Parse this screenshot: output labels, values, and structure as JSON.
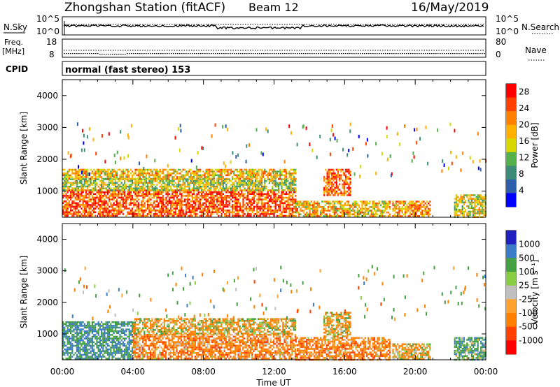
{
  "header": {
    "station": "Zhongshan Station (fitACF)",
    "beam": "Beam 12",
    "date": "16/May/2019"
  },
  "nsky_panel": {
    "left_label": "N.Sky",
    "right_label": "N.Search",
    "left_ticks": [
      "10^5",
      "10^0"
    ],
    "right_ticks": [
      "10^5",
      "10^0"
    ]
  },
  "freq_panel": {
    "left_label_line1": "Freq.",
    "left_label_line2": "[MHz]",
    "right_label": "Nave",
    "left_ticks": [
      "18",
      "8"
    ],
    "right_ticks": [
      "80",
      "0"
    ]
  },
  "cpid": {
    "label": "CPID",
    "value": "normal (fast stereo) 153"
  },
  "colors": {
    "power_scale": [
      "#0000ff",
      "#2e5fa8",
      "#3c8c78",
      "#54b04a",
      "#d8d800",
      "#ffb000",
      "#ff8000",
      "#ff4000",
      "#ff0000"
    ],
    "velocity_scale": [
      "#ff0000",
      "#ff4000",
      "#ff8000",
      "#ffa030",
      "#c0c0c0",
      "#88cc44",
      "#44a040",
      "#3c7cc8",
      "#2020c0"
    ]
  },
  "chart_data": [
    {
      "type": "heatmap",
      "title": "",
      "xlabel": "",
      "ylabel": "Slant Range [km]",
      "xlim": [
        0,
        24
      ],
      "ylim": [
        180,
        4500
      ],
      "x_tick_labels": [
        "00:00",
        "04:00",
        "08:00",
        "12:00",
        "16:00",
        "20:00",
        "00:00"
      ],
      "y_tick_labels": [
        "1000",
        "2000",
        "3000",
        "4000"
      ],
      "colorbar": {
        "label": "Power [dB]",
        "tick_labels": [
          "4",
          "8",
          "12",
          "16",
          "20",
          "24",
          "28"
        ],
        "range": [
          0,
          30
        ]
      },
      "regions": [
        {
          "t0": 0.0,
          "t1": 13.2,
          "r0": 200,
          "r1": 1050,
          "value": 24
        },
        {
          "t0": 0.0,
          "t1": 13.2,
          "r0": 1050,
          "r1": 1400,
          "value": 14
        },
        {
          "t0": 0.0,
          "t1": 13.2,
          "r0": 1400,
          "r1": 1700,
          "value": 18
        },
        {
          "t0": 13.2,
          "t1": 18.6,
          "r0": 200,
          "r1": 700,
          "value": 18
        },
        {
          "t0": 14.8,
          "t1": 16.3,
          "r0": 900,
          "r1": 1700,
          "value": 24
        },
        {
          "t0": 18.7,
          "t1": 20.8,
          "r0": 200,
          "r1": 700,
          "value": 20
        },
        {
          "t0": 22.2,
          "t1": 24.0,
          "r0": 200,
          "r1": 900,
          "value": 16
        }
      ]
    },
    {
      "type": "heatmap",
      "title": "",
      "xlabel": "Time UT",
      "ylabel": "Slant Range [km]",
      "xlim": [
        0,
        24
      ],
      "ylim": [
        180,
        4500
      ],
      "x_tick_labels": [
        "00:00",
        "04:00",
        "08:00",
        "12:00",
        "16:00",
        "20:00",
        "00:00"
      ],
      "y_tick_labels": [
        "1000",
        "2000",
        "3000",
        "4000"
      ],
      "colorbar": {
        "label": "Velocity [m s⁻¹]",
        "tick_labels": [
          "1000",
          "500",
          "100",
          "25",
          "-25",
          "-100",
          "-500",
          "-1000"
        ],
        "range": [
          -1200,
          1200
        ]
      },
      "regions": [
        {
          "t0": 0.0,
          "t1": 4.0,
          "r0": 200,
          "r1": 1400,
          "value": 500
        },
        {
          "t0": 4.0,
          "t1": 13.2,
          "r0": 200,
          "r1": 1000,
          "value": -300
        },
        {
          "t0": 4.0,
          "t1": 13.2,
          "r0": 1000,
          "r1": 1500,
          "value": -100
        },
        {
          "t0": 13.2,
          "t1": 18.6,
          "r0": 200,
          "r1": 900,
          "value": -300
        },
        {
          "t0": 14.8,
          "t1": 16.3,
          "r0": 900,
          "r1": 1700,
          "value": -150
        },
        {
          "t0": 18.7,
          "t1": 20.8,
          "r0": 200,
          "r1": 700,
          "value": -150
        },
        {
          "t0": 22.2,
          "t1": 24.0,
          "r0": 200,
          "r1": 900,
          "value": 300
        }
      ]
    }
  ]
}
